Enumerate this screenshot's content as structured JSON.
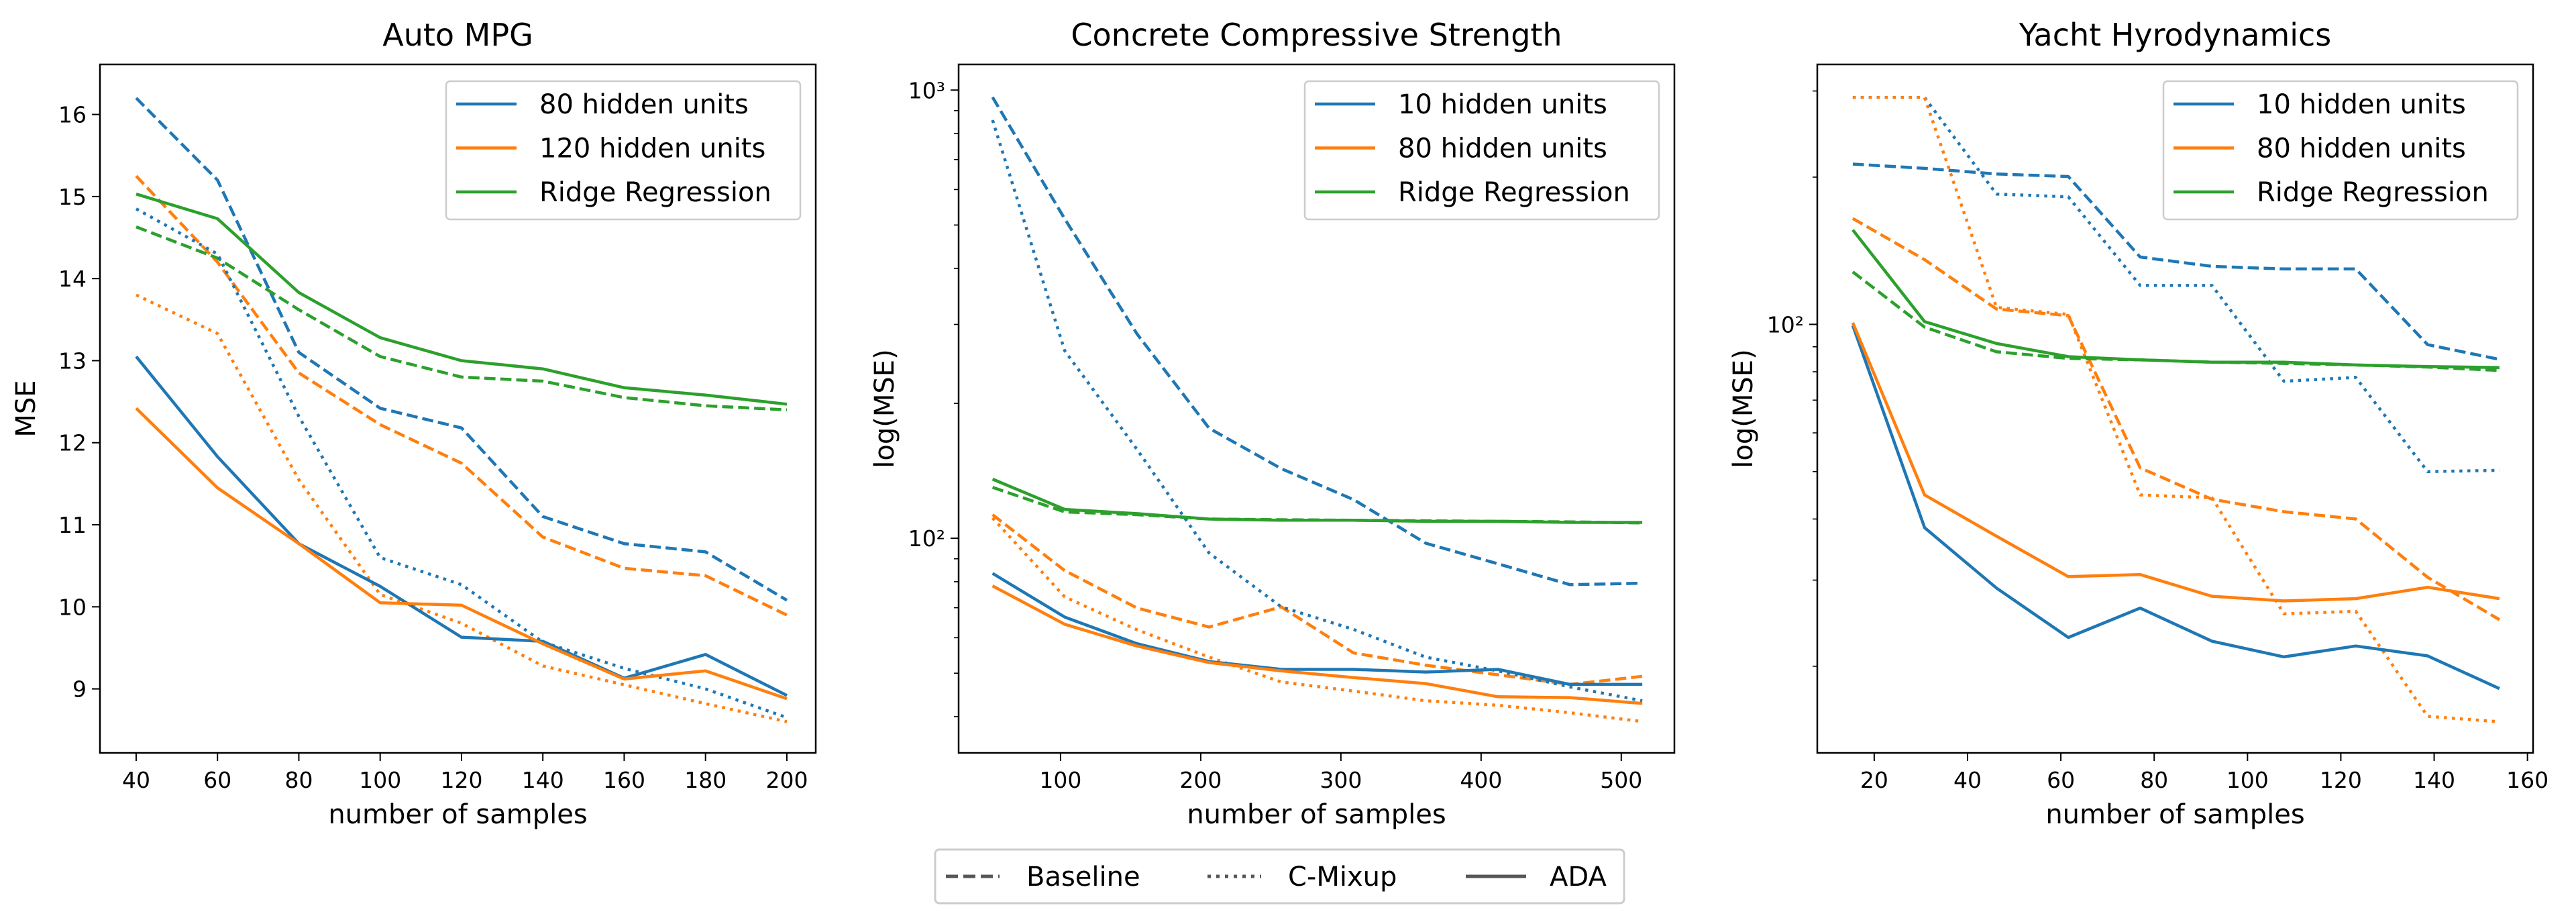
{
  "colors": {
    "blue": "#1f77b4",
    "orange": "#ff7f0e",
    "green": "#2ca02c",
    "legend_gray": "#555555"
  },
  "figure_legend": {
    "placement": "bottom-center",
    "entries": [
      {
        "label": "Baseline",
        "style": "dashed"
      },
      {
        "label": "C-Mixup",
        "style": "dotted"
      },
      {
        "label": "ADA",
        "style": "solid"
      }
    ]
  },
  "chart_data": [
    {
      "type": "line",
      "title": "Auto MPG",
      "xlabel": "number of samples",
      "ylabel": "MSE",
      "yscale": "linear",
      "xlim": [
        31.1,
        207.1
      ],
      "ylim": [
        8.22,
        16.61
      ],
      "xticks": [
        40,
        60,
        80,
        100,
        120,
        140,
        160,
        180,
        200
      ],
      "xtick_labels": [
        "40",
        "60",
        "80",
        "100",
        "120",
        "140",
        "160",
        "180",
        "200"
      ],
      "yticks": [
        9,
        10,
        11,
        12,
        13,
        14,
        15,
        16
      ],
      "ytick_labels": [
        "9",
        "10",
        "11",
        "12",
        "13",
        "14",
        "15",
        "16"
      ],
      "grid": false,
      "legend_placement": "top-right",
      "legend": [
        {
          "label": "80 hidden units",
          "color": "#1f77b4"
        },
        {
          "label": "120 hidden units",
          "color": "#ff7f0e"
        },
        {
          "label": "Ridge Regression",
          "color": "#2ca02c"
        }
      ],
      "x": [
        40,
        60,
        80,
        100,
        120,
        140,
        160,
        180,
        200
      ],
      "series": [
        {
          "model": "80 hidden units",
          "method": "Baseline",
          "color": "#1f77b4",
          "values": [
            16.2,
            15.2,
            13.1,
            12.42,
            12.18,
            11.1,
            10.77,
            10.67,
            10.08
          ]
        },
        {
          "model": "120 hidden units",
          "method": "Baseline",
          "color": "#ff7f0e",
          "values": [
            15.25,
            14.2,
            12.85,
            12.22,
            11.75,
            10.85,
            10.47,
            10.38,
            9.9
          ]
        },
        {
          "model": "Ridge Regression",
          "method": "Baseline",
          "color": "#2ca02c",
          "values": [
            14.63,
            14.25,
            13.62,
            13.05,
            12.8,
            12.75,
            12.55,
            12.45,
            12.4
          ]
        },
        {
          "model": "80 hidden units",
          "method": "C-Mixup",
          "color": "#1f77b4",
          "values": [
            14.85,
            14.3,
            12.32,
            10.6,
            10.27,
            9.57,
            9.25,
            9.0,
            8.65
          ]
        },
        {
          "model": "120 hidden units",
          "method": "C-Mixup",
          "color": "#ff7f0e",
          "values": [
            13.8,
            13.33,
            11.55,
            10.15,
            9.8,
            9.28,
            9.05,
            8.82,
            8.6
          ]
        },
        {
          "model": "80 hidden units",
          "method": "ADA",
          "color": "#1f77b4",
          "values": [
            13.05,
            11.83,
            10.77,
            10.25,
            9.63,
            9.58,
            9.13,
            9.42,
            8.92
          ]
        },
        {
          "model": "120 hidden units",
          "method": "ADA",
          "color": "#ff7f0e",
          "values": [
            12.42,
            11.45,
            10.77,
            10.05,
            10.02,
            9.55,
            9.12,
            9.22,
            8.88
          ]
        },
        {
          "model": "Ridge Regression",
          "method": "ADA",
          "color": "#2ca02c",
          "values": [
            15.03,
            14.73,
            13.83,
            13.28,
            13.0,
            12.9,
            12.67,
            12.58,
            12.47
          ]
        }
      ]
    },
    {
      "type": "line",
      "title": "Concrete Compressive Strength",
      "xlabel": "number of samples",
      "ylabel": "log(MSE)",
      "yscale": "log",
      "xlim": [
        27.3,
        537.9
      ],
      "ylim": [
        33.2,
        1141
      ],
      "xticks": [
        100,
        200,
        300,
        400,
        500
      ],
      "xtick_labels": [
        "100",
        "200",
        "300",
        "400",
        "500"
      ],
      "yticks": [
        100,
        1000
      ],
      "ytick_labels": [
        "10²",
        "10³"
      ],
      "grid": false,
      "legend_placement": "top-right",
      "legend": [
        {
          "label": "10 hidden units",
          "color": "#1f77b4"
        },
        {
          "label": "80 hidden units",
          "color": "#ff7f0e"
        },
        {
          "label": "Ridge Regression",
          "color": "#2ca02c"
        }
      ],
      "x": [
        51.5,
        103,
        154.5,
        206,
        257.5,
        309,
        360.5,
        412,
        463.5,
        515
      ],
      "series": [
        {
          "model": "10 hidden units",
          "method": "Baseline",
          "color": "#1f77b4",
          "values": [
            964,
            516,
            286,
            176,
            143,
            122,
            97.5,
            87.7,
            78.8,
            79.4
          ]
        },
        {
          "model": "80 hidden units",
          "method": "Baseline",
          "color": "#ff7f0e",
          "values": [
            112.9,
            84.7,
            69.9,
            63.4,
            70.3,
            55.5,
            52.1,
            49.6,
            47.2,
            49.2
          ]
        },
        {
          "model": "Ridge Regression",
          "method": "Baseline",
          "color": "#2ca02c",
          "values": [
            129.9,
            114.5,
            112.9,
            110.4,
            110.0,
            109.7,
            109.4,
            109.1,
            108.8,
            108.2
          ]
        },
        {
          "model": "10 hidden units",
          "method": "C-Mixup",
          "color": "#1f77b4",
          "values": [
            857,
            262,
            158,
            92.7,
            70.3,
            62.6,
            54.3,
            50.6,
            46.6,
            43.4
          ]
        },
        {
          "model": "80 hidden units",
          "method": "C-Mixup",
          "color": "#ff7f0e",
          "values": [
            111,
            74,
            62.5,
            54.3,
            47.8,
            45.6,
            43.4,
            42.4,
            40.8,
            39.0
          ]
        },
        {
          "model": "10 hidden units",
          "method": "ADA",
          "color": "#1f77b4",
          "values": [
            83.5,
            66.7,
            58.2,
            53.1,
            51.0,
            51.0,
            50.3,
            51.0,
            47.2,
            47.2
          ]
        },
        {
          "model": "80 hidden units",
          "method": "ADA",
          "color": "#ff7f0e",
          "values": [
            78.3,
            64.3,
            57.5,
            52.8,
            50.6,
            48.9,
            47.4,
            44.3,
            44.1,
            42.8
          ]
        },
        {
          "model": "Ridge Regression",
          "method": "ADA",
          "color": "#2ca02c",
          "values": [
            135.5,
            116,
            113.5,
            110.4,
            109.7,
            109.7,
            109.1,
            109.1,
            108.5,
            108.5
          ]
        }
      ]
    },
    {
      "type": "line",
      "title": "Yacht Hyrodynamics",
      "xlabel": "number of samples",
      "ylabel": "log(MSE)",
      "yscale": "log",
      "xlim": [
        7.8,
        161.2
      ],
      "ylim": [
        13.3,
        340
      ],
      "xticks": [
        20,
        40,
        60,
        80,
        100,
        120,
        140,
        160
      ],
      "xtick_labels": [
        "20",
        "40",
        "60",
        "80",
        "100",
        "120",
        "140",
        "160"
      ],
      "yticks": [
        100
      ],
      "ytick_labels": [
        "10²"
      ],
      "grid": false,
      "legend_placement": "top-right",
      "legend": [
        {
          "label": "10 hidden units",
          "color": "#1f77b4"
        },
        {
          "label": "80 hidden units",
          "color": "#ff7f0e"
        },
        {
          "label": "Ridge Regression",
          "color": "#2ca02c"
        }
      ],
      "x": [
        15.4,
        30.8,
        46.2,
        61.6,
        77,
        92.4,
        107.8,
        123.2,
        138.6,
        154
      ],
      "series": [
        {
          "model": "10 hidden units",
          "method": "Baseline",
          "color": "#1f77b4",
          "values": [
            212.7,
            208.4,
            203,
            200.6,
            137.3,
            131.4,
            129.8,
            129.8,
            90.9,
            84.8
          ]
        },
        {
          "model": "80 hidden units",
          "method": "Baseline",
          "color": "#ff7f0e",
          "values": [
            164.6,
            135.6,
            107.5,
            104.2,
            50.9,
            43.9,
            41.4,
            40.0,
            30.4,
            24.9
          ]
        },
        {
          "model": "Ridge Regression",
          "method": "Baseline",
          "color": "#2ca02c",
          "values": [
            128,
            98.7,
            87.9,
            85.2,
            84.6,
            83.7,
            83.2,
            82.6,
            81.8,
            80.5
          ]
        },
        {
          "model": "10 hidden units",
          "method": "C-Mixup",
          "color": "#1f77b4",
          "values": [
            291,
            291,
            184.7,
            182.3,
            120.1,
            120.1,
            76.5,
            77.9,
            50.0,
            50.3
          ]
        },
        {
          "model": "80 hidden units",
          "method": "C-Mixup",
          "color": "#ff7f0e",
          "values": [
            291,
            291,
            108.3,
            104.8,
            44.8,
            44.2,
            25.6,
            25.9,
            15.8,
            15.4
          ]
        },
        {
          "model": "10 hidden units",
          "method": "ADA",
          "color": "#1f77b4",
          "values": [
            99.5,
            38.4,
            28.9,
            22.9,
            26.3,
            22.5,
            20.9,
            22.0,
            21.0,
            18.0
          ]
        },
        {
          "model": "80 hidden units",
          "method": "ADA",
          "color": "#ff7f0e",
          "values": [
            100.8,
            44.8,
            36.9,
            30.5,
            30.8,
            27.8,
            27.2,
            27.5,
            29.0,
            27.5
          ]
        },
        {
          "model": "Ridge Regression",
          "method": "ADA",
          "color": "#2ca02c",
          "values": [
            156,
            101.3,
            91.4,
            85.9,
            84.6,
            83.7,
            83.7,
            82.6,
            82.0,
            81.6
          ]
        }
      ]
    }
  ]
}
